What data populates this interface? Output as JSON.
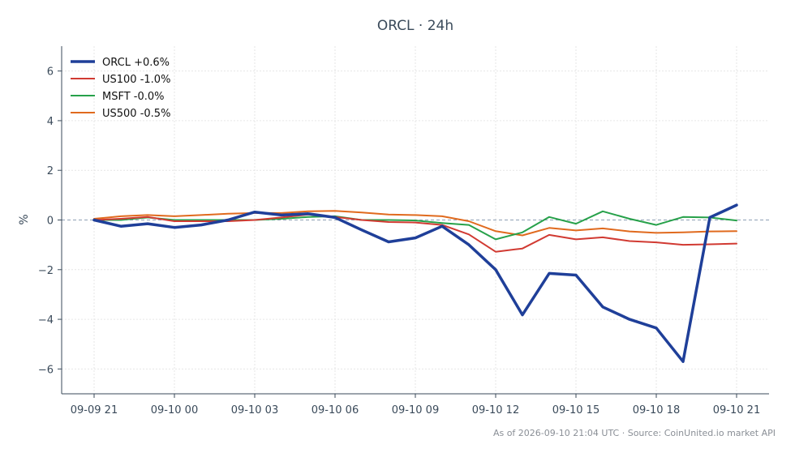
{
  "chart_data": {
    "type": "line",
    "title": "ORCL · 24h",
    "ylabel": "%",
    "xlabel": "",
    "ylim": [
      -7,
      7
    ],
    "yticks": [
      -6,
      -4,
      -2,
      0,
      2,
      4,
      6
    ],
    "ytick_labels": [
      "−6",
      "−4",
      "−2",
      "0",
      "2",
      "4",
      "6"
    ],
    "xticks": [
      "09-09 21",
      "09-10 00",
      "09-10 03",
      "09-10 06",
      "09-10 09",
      "09-10 12",
      "09-10 15",
      "09-10 18",
      "09-10 21"
    ],
    "x": [
      "09-09 21:00",
      "09-09 22:00",
      "09-09 23:00",
      "09-10 00:00",
      "09-10 01:00",
      "09-10 02:00",
      "09-10 03:00",
      "09-10 04:00",
      "09-10 05:00",
      "09-10 06:00",
      "09-10 07:00",
      "09-10 08:00",
      "09-10 09:00",
      "09-10 10:00",
      "09-10 11:00",
      "09-10 12:00",
      "09-10 13:00",
      "09-10 14:00",
      "09-10 15:00",
      "09-10 16:00",
      "09-10 17:00",
      "09-10 18:00",
      "09-10 19:00",
      "09-10 20:00",
      "09-10 21:00"
    ],
    "series": [
      {
        "name": "ORCL +0.6%",
        "color": "#1f3f99",
        "width": 3.5,
        "values": [
          0.0,
          -0.25,
          -0.15,
          -0.3,
          -0.2,
          0.0,
          0.32,
          0.2,
          0.25,
          0.1,
          -0.4,
          -0.88,
          -0.72,
          -0.25,
          -1.0,
          -2.0,
          -3.82,
          -2.15,
          -2.22,
          -3.5,
          -4.0,
          -4.35,
          -5.7,
          0.1,
          0.6
        ]
      },
      {
        "name": "US100 -1.0%",
        "color": "#d13a32",
        "width": 2,
        "values": [
          0.0,
          0.05,
          0.12,
          -0.05,
          -0.05,
          -0.05,
          0.0,
          0.1,
          0.22,
          0.12,
          0.0,
          -0.08,
          -0.1,
          -0.2,
          -0.58,
          -1.28,
          -1.15,
          -0.6,
          -0.78,
          -0.7,
          -0.85,
          -0.9,
          -1.0,
          -0.98,
          -0.95
        ]
      },
      {
        "name": "MSFT -0.0%",
        "color": "#27a14a",
        "width": 2,
        "values": [
          0.0,
          0.0,
          0.1,
          0.0,
          0.0,
          0.0,
          0.0,
          0.05,
          0.12,
          0.15,
          0.0,
          0.0,
          -0.02,
          -0.12,
          -0.2,
          -0.78,
          -0.5,
          0.12,
          -0.15,
          0.35,
          0.05,
          -0.2,
          0.12,
          0.1,
          -0.02
        ]
      },
      {
        "name": "US500 -0.5%",
        "color": "#e06a1e",
        "width": 2,
        "values": [
          0.05,
          0.15,
          0.2,
          0.15,
          0.2,
          0.25,
          0.28,
          0.28,
          0.35,
          0.37,
          0.3,
          0.22,
          0.2,
          0.15,
          -0.05,
          -0.45,
          -0.62,
          -0.32,
          -0.42,
          -0.34,
          -0.46,
          -0.52,
          -0.5,
          -0.46,
          -0.45
        ]
      }
    ],
    "zero_line": true,
    "grid": true,
    "legend_position": "top-left"
  },
  "footer": {
    "note": "As of 2026-09-10 21:04 UTC · Source: CoinUnited.io market API"
  }
}
